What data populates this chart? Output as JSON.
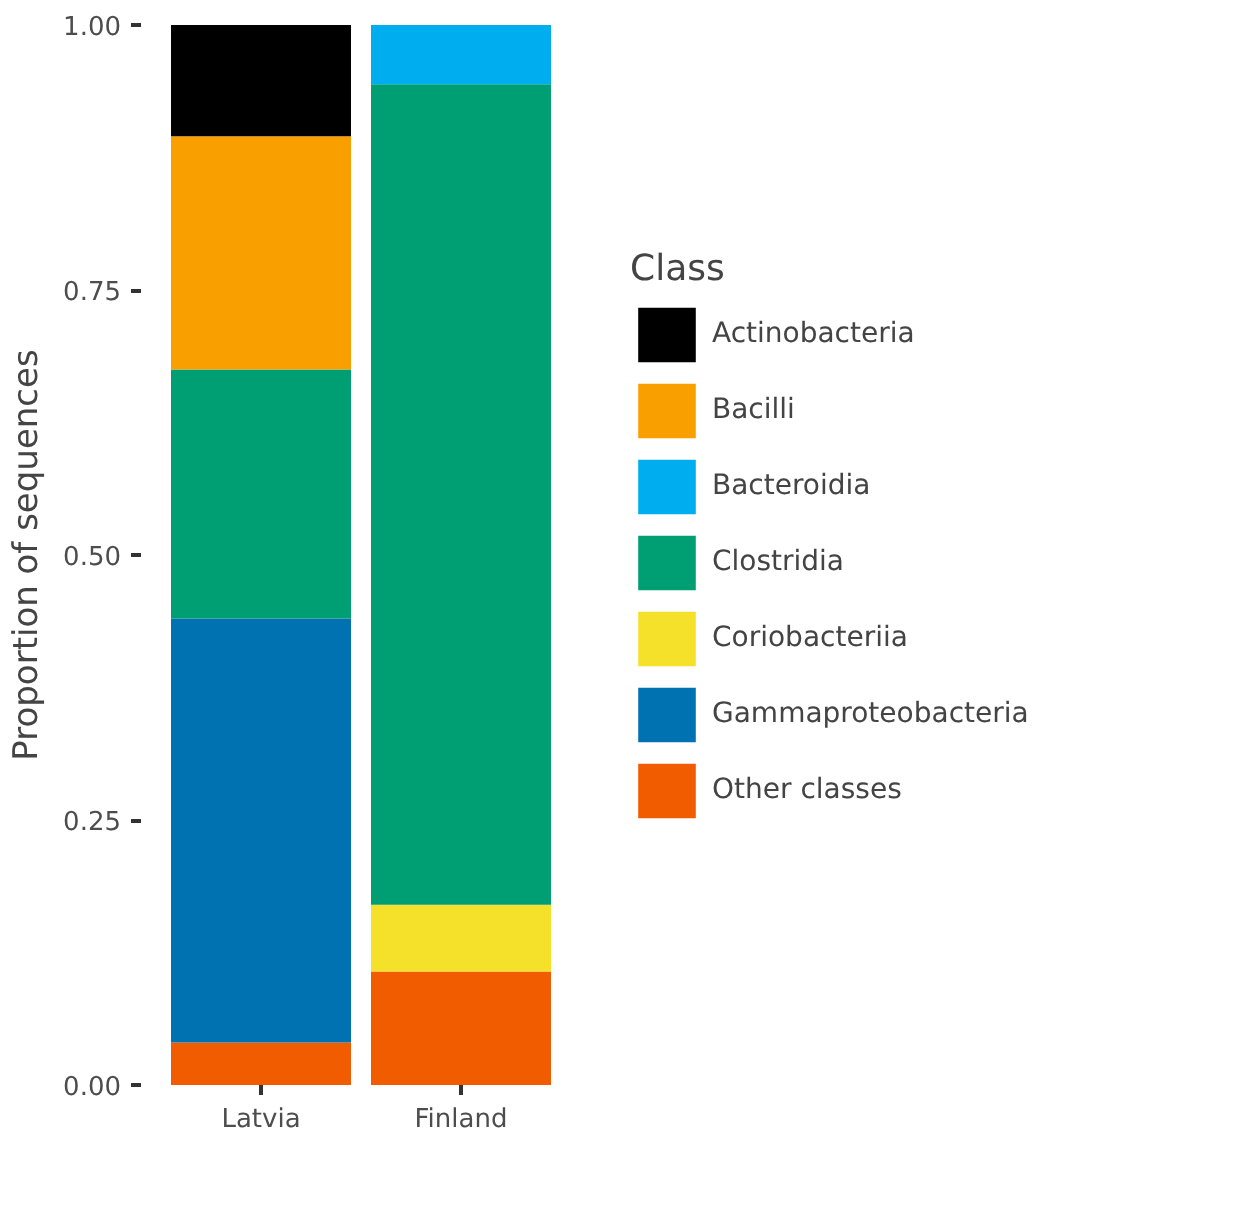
{
  "chart_data": {
    "type": "bar",
    "stacked": true,
    "ylabel": "Proportion of sequences",
    "legend_title": "Class",
    "legend": "right",
    "grid": false,
    "categories": [
      "Latvia",
      "Finland"
    ],
    "ylim": [
      0,
      1
    ],
    "yticks": [
      {
        "value": 0,
        "label": "0.00"
      },
      {
        "value": 0.25,
        "label": "0.25"
      },
      {
        "value": 0.5,
        "label": "0.50"
      },
      {
        "value": 0.75,
        "label": "0.75"
      },
      {
        "value": 1,
        "label": "1.00"
      }
    ],
    "series": [
      {
        "name": "Other classes",
        "color": "#f25c00",
        "values": [
          0.04,
          0.107
        ]
      },
      {
        "name": "Gammaproteobacteria",
        "color": "#0072b2",
        "values": [
          0.4,
          0
        ]
      },
      {
        "name": "Coriobacteriia",
        "color": "#f5e12a",
        "values": [
          0,
          0.063
        ]
      },
      {
        "name": "Clostridia",
        "color": "#009e73",
        "values": [
          0.235,
          0.774
        ]
      },
      {
        "name": "Bacteroidia",
        "color": "#00aeef",
        "values": [
          0,
          0.056
        ]
      },
      {
        "name": "Bacilli",
        "color": "#f9a000",
        "values": [
          0.22,
          0
        ]
      },
      {
        "name": "Actinobacteria",
        "color": "#000000",
        "values": [
          0.105,
          0
        ]
      }
    ]
  }
}
